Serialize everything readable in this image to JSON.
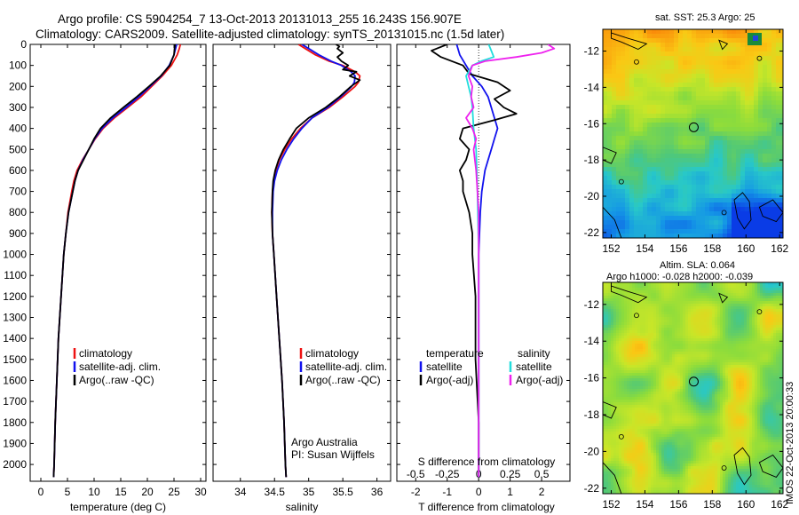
{
  "title": {
    "line1": "Argo profile: CS 5904254_7 13-Oct-2013 20131013_255 16.243S 156.907E",
    "line2": "Climatology: CARS2009. Satellite-adjusted climatology: synTS_20131015.nc (1.5d later)"
  },
  "colors": {
    "climatology": "#ee1111",
    "satellite": "#1111ee",
    "argo": "#000000",
    "sal_satellite": "#22dddd",
    "sal_argo": "#ee22ee"
  },
  "chart_data": [
    {
      "type": "line",
      "id": "temperature",
      "xlabel": "temperature (deg C)",
      "ylabel": "",
      "xlim": [
        -2,
        31
      ],
      "ylim": [
        2080,
        0
      ],
      "xticks": [
        "0",
        "5",
        "10",
        "15",
        "20",
        "25",
        "30"
      ],
      "xtick_values": [
        0,
        5,
        10,
        15,
        20,
        25,
        30
      ],
      "yticks": [
        "0",
        "100",
        "200",
        "300",
        "400",
        "500",
        "600",
        "700",
        "800",
        "900",
        "1000",
        "1100",
        "1200",
        "1300",
        "1400",
        "1500",
        "1600",
        "1700",
        "1800",
        "1900",
        "2000"
      ],
      "ytick_values": [
        0,
        100,
        200,
        300,
        400,
        500,
        600,
        700,
        800,
        900,
        1000,
        1100,
        1200,
        1300,
        1400,
        1500,
        1600,
        1700,
        1800,
        1900,
        2000
      ],
      "legend": [
        "climatology",
        "satellite-adj. clim.",
        "Argo(..raw -QC)"
      ],
      "series": [
        {
          "name": "climatology",
          "color": "#ee1111",
          "depth": [
            0,
            20,
            50,
            100,
            150,
            200,
            250,
            300,
            350,
            400,
            450,
            500,
            550,
            600,
            650,
            700,
            800,
            900,
            1000,
            1200,
            1400,
            1600,
            1800,
            2000,
            2060
          ],
          "values": [
            26.2,
            26.0,
            25.6,
            24.5,
            22.8,
            20.8,
            18.8,
            16.3,
            13.8,
            11.7,
            10.2,
            9.0,
            7.8,
            6.8,
            6.2,
            5.8,
            5.1,
            4.7,
            4.3,
            3.8,
            3.3,
            3.0,
            2.7,
            2.5,
            2.4
          ]
        },
        {
          "name": "satellite-adj. clim.",
          "color": "#1111ee",
          "depth": [
            0,
            20,
            50,
            100,
            150,
            200,
            250,
            300,
            350,
            400,
            450,
            500,
            550,
            600,
            650,
            700,
            800,
            900,
            1000,
            1200,
            1400,
            1600,
            1800,
            2000,
            2060
          ],
          "values": [
            25.5,
            25.3,
            25.0,
            24.1,
            22.6,
            20.5,
            18.4,
            16.0,
            13.5,
            11.5,
            10.1,
            9.0,
            7.9,
            7.0,
            6.4,
            6.0,
            5.2,
            4.7,
            4.3,
            3.8,
            3.3,
            3.0,
            2.7,
            2.5,
            2.4
          ]
        },
        {
          "name": "Argo(..raw -QC)",
          "color": "#000000",
          "depth": [
            0,
            20,
            50,
            100,
            150,
            200,
            250,
            300,
            350,
            400,
            450,
            500,
            550,
            600,
            650,
            700,
            800,
            900,
            1000,
            1200,
            1400,
            1600,
            1800,
            2000,
            2060
          ],
          "values": [
            25.2,
            25.1,
            25.0,
            24.2,
            22.5,
            20.3,
            18.0,
            15.5,
            13.1,
            11.2,
            10.0,
            9.0,
            8.0,
            7.0,
            6.4,
            6.0,
            5.2,
            4.7,
            4.3,
            3.8,
            3.3,
            3.0,
            2.7,
            2.5,
            2.4
          ]
        }
      ]
    },
    {
      "type": "line",
      "id": "salinity",
      "xlabel": "salinity",
      "ylabel": "",
      "xlim": [
        33.6,
        36.2
      ],
      "ylim": [
        2080,
        0
      ],
      "xticks": [
        "34",
        "34.5",
        "35",
        "35.5",
        "36"
      ],
      "xtick_values": [
        34,
        34.5,
        35,
        35.5,
        36
      ],
      "legend": [
        "climatology",
        "satellite-adj. clim.",
        "Argo(..raw -QC)"
      ],
      "annotation": [
        "Argo Australia",
        "PI: Susan Wijffels"
      ],
      "series": [
        {
          "name": "climatology",
          "color": "#ee1111",
          "depth": [
            0,
            20,
            50,
            80,
            100,
            130,
            150,
            180,
            200,
            250,
            300,
            350,
            400,
            450,
            500,
            550,
            600,
            650,
            700,
            800,
            900,
            1000,
            1200,
            1400,
            1600,
            1800,
            2000,
            2060
          ],
          "values": [
            34.85,
            34.95,
            35.1,
            35.3,
            35.5,
            35.68,
            35.75,
            35.73,
            35.68,
            35.5,
            35.3,
            35.05,
            34.88,
            34.75,
            34.65,
            34.57,
            34.52,
            34.49,
            34.47,
            34.46,
            34.47,
            34.49,
            34.53,
            34.57,
            34.61,
            34.64,
            34.66,
            34.67
          ]
        },
        {
          "name": "satellite-adj. clim.",
          "color": "#1111ee",
          "depth": [
            0,
            20,
            50,
            80,
            100,
            130,
            150,
            180,
            200,
            250,
            300,
            350,
            400,
            450,
            500,
            550,
            600,
            650,
            700,
            800,
            900,
            1000,
            1200,
            1400,
            1600,
            1800,
            2000,
            2060
          ],
          "values": [
            34.9,
            35.0,
            35.15,
            35.33,
            35.48,
            35.62,
            35.68,
            35.67,
            35.63,
            35.47,
            35.28,
            35.05,
            34.9,
            34.78,
            34.68,
            34.6,
            34.54,
            34.5,
            34.48,
            34.47,
            34.47,
            34.49,
            34.53,
            34.57,
            34.61,
            34.64,
            34.66,
            34.67
          ]
        },
        {
          "name": "Argo(..raw -QC)",
          "color": "#000000",
          "depth": [
            0,
            10,
            20,
            40,
            60,
            80,
            100,
            120,
            130,
            150,
            170,
            200,
            250,
            300,
            350,
            400,
            450,
            500,
            550,
            600,
            650,
            700,
            800,
            900,
            1000,
            1200,
            1400,
            1600,
            1800,
            2000,
            2060
          ],
          "values": [
            35.4,
            35.45,
            35.42,
            35.5,
            35.42,
            35.48,
            35.58,
            35.5,
            35.7,
            35.6,
            35.75,
            35.62,
            35.45,
            35.25,
            35.0,
            34.82,
            34.72,
            34.63,
            34.56,
            34.51,
            34.48,
            34.47,
            34.46,
            34.47,
            34.49,
            34.53,
            34.57,
            34.61,
            34.64,
            34.66,
            34.67
          ]
        }
      ]
    },
    {
      "type": "line",
      "id": "difference",
      "xlabel": "T difference from climatology",
      "xlabel2": "S difference from climatology",
      "xlim": [
        -2.6,
        2.9
      ],
      "ylim": [
        2080,
        0
      ],
      "xticks": [
        "-2",
        "-1",
        "0",
        "1",
        "2"
      ],
      "xtick_values": [
        -2,
        -1,
        0,
        1,
        2
      ],
      "xticks_s": [
        "-0.5",
        "-0.25",
        "0",
        "0.25",
        "0.5"
      ],
      "xtick_values_s": [
        -0.5,
        -0.25,
        0,
        0.25,
        0.5
      ],
      "legend_t_title": "temperature",
      "legend_s_title": "salinity",
      "legend_t": [
        "satellite",
        "Argo(-adj)"
      ],
      "legend_s": [
        "satellite",
        "Argo(-adj)"
      ],
      "series": [
        {
          "name": "T satellite",
          "color": "#1111ee",
          "depth": [
            0,
            50,
            100,
            150,
            200,
            250,
            300,
            350,
            400,
            450,
            500,
            550,
            600,
            700,
            800,
            1000,
            1500,
            2000,
            2060
          ],
          "values": [
            -0.7,
            -0.6,
            -0.4,
            -0.2,
            0.1,
            0.3,
            0.4,
            0.5,
            0.6,
            0.5,
            0.4,
            0.3,
            0.2,
            0.1,
            0.05,
            0.0,
            0.0,
            0.0,
            0.0
          ]
        },
        {
          "name": "T Argo(-adj)",
          "color": "#000000",
          "depth": [
            0,
            30,
            60,
            100,
            140,
            180,
            220,
            260,
            300,
            330,
            360,
            400,
            450,
            500,
            550,
            600,
            650,
            700,
            800,
            900,
            1000,
            1200,
            1500,
            1800,
            2000,
            2060
          ],
          "values": [
            -1.0,
            -1.5,
            -1.2,
            -0.5,
            -0.3,
            0.6,
            1.0,
            0.5,
            0.8,
            1.2,
            0.5,
            -0.5,
            -0.6,
            -0.3,
            -0.4,
            -0.6,
            -0.5,
            -0.5,
            -0.3,
            -0.2,
            -0.2,
            -0.1,
            -0.1,
            0.0,
            0.0,
            0.0
          ]
        },
        {
          "name": "S satellite",
          "color": "#22dddd",
          "depth": [
            0,
            30,
            60,
            80,
            100,
            150,
            200,
            250,
            300,
            400,
            500,
            700,
            1000,
            1500,
            2000,
            2060
          ],
          "values": [
            0.08,
            0.1,
            0.12,
            0.02,
            -0.05,
            -0.1,
            -0.08,
            -0.06,
            -0.05,
            -0.04,
            -0.02,
            -0.01,
            0.0,
            0.0,
            0.0,
            0.0
          ]
        },
        {
          "name": "S Argo(-adj)",
          "color": "#ee22ee",
          "depth": [
            0,
            20,
            40,
            60,
            80,
            100,
            150,
            200,
            250,
            300,
            350,
            400,
            450,
            500,
            550,
            600,
            700,
            800,
            1000,
            1500,
            2000,
            2060
          ],
          "values": [
            0.55,
            0.6,
            0.5,
            0.3,
            0.05,
            -0.05,
            -0.08,
            -0.05,
            -0.06,
            -0.04,
            -0.1,
            -0.05,
            -0.02,
            -0.04,
            -0.03,
            -0.02,
            -0.01,
            0.0,
            0.0,
            0.0,
            0.0,
            0.0
          ]
        }
      ]
    },
    {
      "type": "heatmap",
      "id": "sst_map",
      "title": "sat. SST: 25.3 Argo: 25",
      "xlim": [
        151.5,
        162.2
      ],
      "ylim": [
        -22.3,
        -10.8
      ],
      "xticks": [
        "152",
        "154",
        "156",
        "158",
        "160",
        "162"
      ],
      "xtick_values": [
        152,
        154,
        156,
        158,
        160,
        162
      ],
      "yticks": [
        "-12",
        "-14",
        "-16",
        "-18",
        "-20",
        "-22"
      ],
      "ytick_values": [
        -12,
        -14,
        -16,
        -18,
        -20,
        -22
      ],
      "marker": {
        "lon": 156.9,
        "lat": -16.2
      }
    },
    {
      "type": "heatmap",
      "id": "sla_map",
      "title": "Altim. SLA: 0.064",
      "subtitle": "Argo h1000: -0.028 h2000: -0.039",
      "xlim": [
        151.5,
        162.2
      ],
      "ylim": [
        -22.3,
        -10.8
      ],
      "xticks": [
        "152",
        "154",
        "156",
        "158",
        "160",
        "162"
      ],
      "xtick_values": [
        152,
        154,
        156,
        158,
        160,
        162
      ],
      "yticks": [
        "-12",
        "-14",
        "-16",
        "-18",
        "-20",
        "-22"
      ],
      "ytick_values": [
        -12,
        -14,
        -16,
        -18,
        -20,
        -22
      ],
      "marker": {
        "lon": 156.9,
        "lat": -16.2
      }
    }
  ],
  "watermark": "IMOS 22-Oct-2013 20:00:33"
}
